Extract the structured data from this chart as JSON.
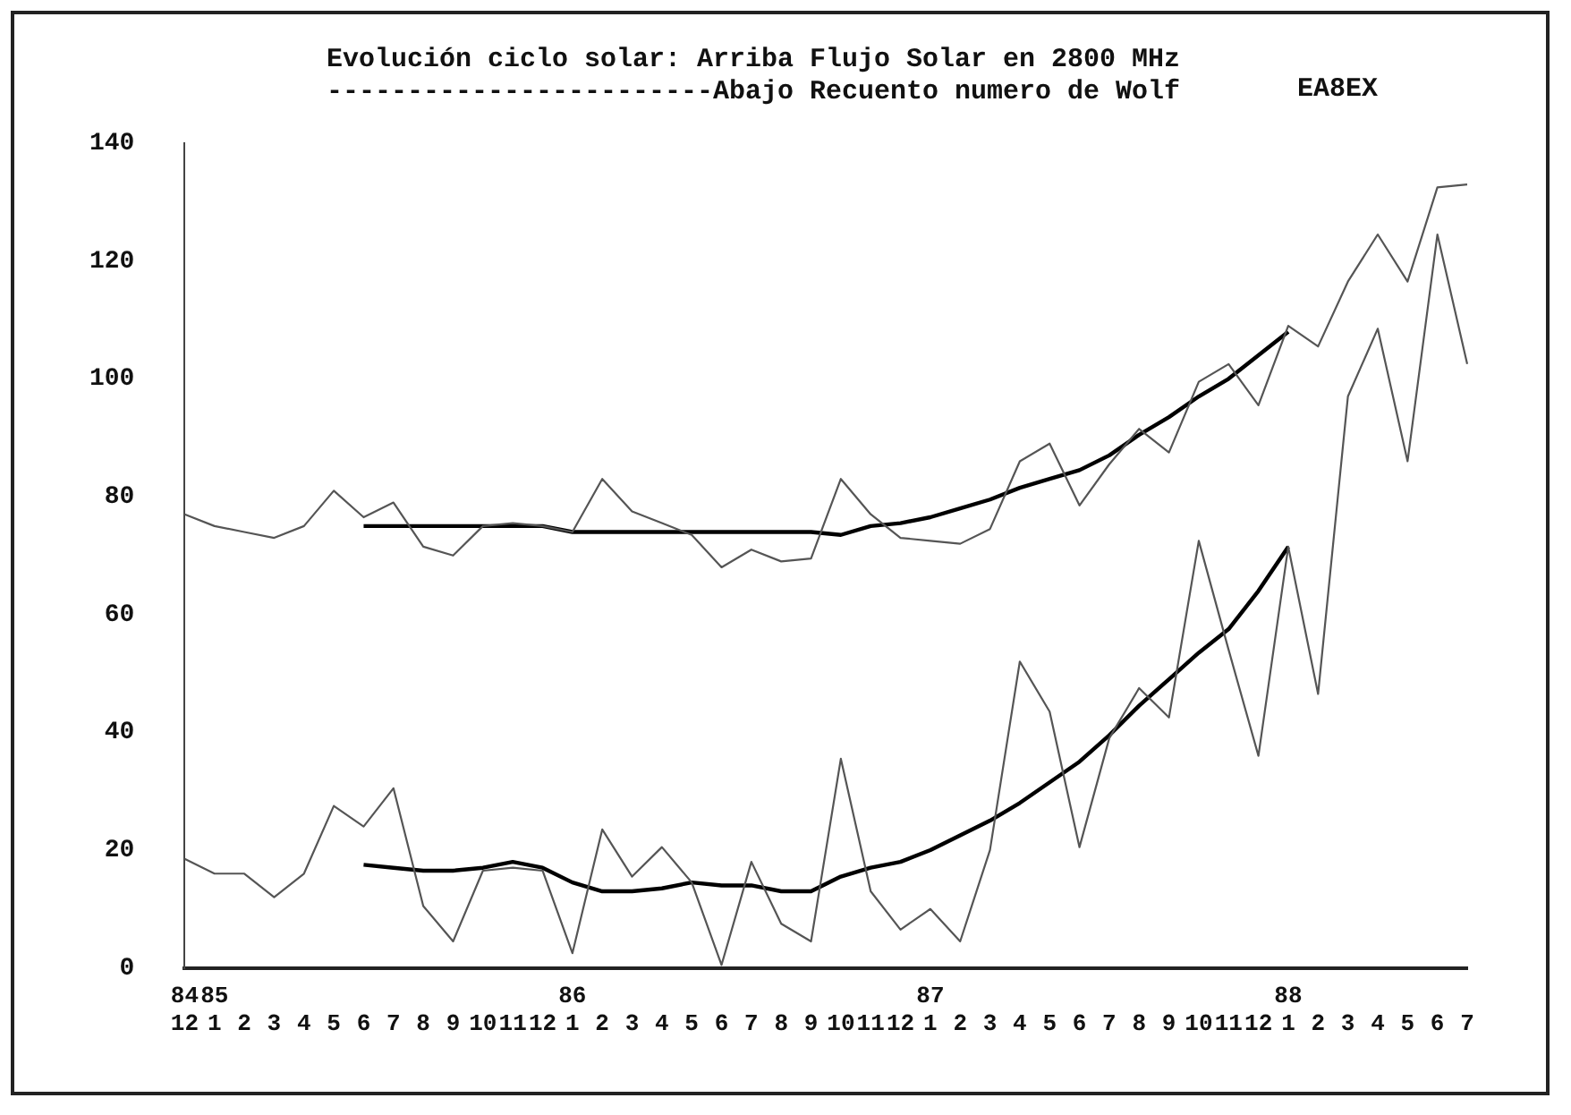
{
  "chart_data": {
    "type": "line",
    "title": "Evolución ciclo solar: Arriba Flujo Solar en 2800 MHz",
    "subtitle": "------------------------Abajo Recuento numero de Wolf",
    "annotations": [
      "EA8EX"
    ],
    "categories": [
      "84\n12",
      "85\n1",
      "2",
      "3",
      "4",
      "5",
      "6",
      "7",
      "8",
      "9",
      "10",
      "11",
      "12",
      "86\n1",
      "2",
      "3",
      "4",
      "5",
      "6",
      "7",
      "8",
      "9",
      "10",
      "11",
      "12",
      "87\n1",
      "2",
      "3",
      "4",
      "5",
      "6",
      "7",
      "8",
      "9",
      "10",
      "11",
      "12",
      "88\n1",
      "2",
      "3",
      "4",
      "5",
      "6",
      "7"
    ],
    "ylim": [
      0,
      140
    ],
    "yticks": [
      0,
      20,
      40,
      60,
      80,
      100,
      120,
      140
    ],
    "grid": false,
    "legend": false,
    "marker": "none",
    "line_style": "solid",
    "series": [
      {
        "color": "#555555",
        "values": [
          77,
          75,
          74,
          73,
          75,
          81,
          76.5,
          79,
          71.5,
          70,
          75,
          75.5,
          75,
          74,
          83,
          77.5,
          75.5,
          73.5,
          68,
          71,
          69,
          69.5,
          83,
          77,
          73,
          72.5,
          72,
          74.5,
          86,
          89,
          78.5,
          85.5,
          91.5,
          87.5,
          99.5,
          102.5,
          95.5,
          109,
          105.5,
          116.5,
          124.5,
          116.5,
          132.5,
          133
        ]
      },
      {
        "color": "#000000",
        "values": [
          null,
          null,
          null,
          null,
          null,
          null,
          75,
          75,
          75,
          75,
          75,
          75,
          75,
          74,
          74,
          74,
          74,
          74,
          74,
          74,
          74,
          74,
          73.5,
          75,
          75.5,
          76.5,
          78,
          79.5,
          81.5,
          83,
          84.5,
          87,
          90.5,
          93.5,
          97,
          100,
          104,
          108,
          null,
          null,
          null,
          null,
          null,
          null
        ]
      },
      {
        "color": "#555555",
        "values": [
          18.5,
          16,
          16,
          12,
          16,
          27.5,
          24,
          30.5,
          10.5,
          4.5,
          16.5,
          17,
          16.5,
          2.5,
          23.5,
          15.5,
          20.5,
          14.5,
          0.5,
          18,
          7.5,
          4.5,
          35.5,
          13,
          6.5,
          10,
          4.5,
          20,
          52,
          43.5,
          20.5,
          39,
          47.5,
          42.5,
          72.5,
          54,
          36,
          71.5,
          46.5,
          97,
          108.5,
          86,
          124.5,
          102.5
        ]
      },
      {
        "color": "#000000",
        "values": [
          null,
          null,
          null,
          null,
          null,
          null,
          17.5,
          17,
          16.5,
          16.5,
          17,
          18,
          17,
          14.5,
          13,
          13,
          13.5,
          14.5,
          14,
          14,
          13,
          13,
          15.5,
          17,
          18,
          20,
          22.5,
          25,
          28,
          31.5,
          35,
          39.5,
          44.5,
          49,
          53.5,
          57.5,
          64,
          71.5,
          null,
          null,
          null,
          null,
          null,
          null
        ]
      }
    ]
  }
}
